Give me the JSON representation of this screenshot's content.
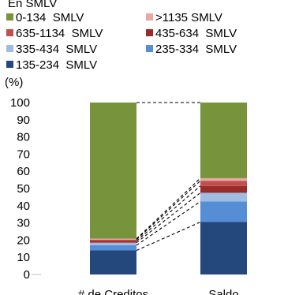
{
  "chart_data": {
    "type": "bar",
    "stacked": true,
    "title": "En SMLV",
    "ylabel": "(%)",
    "ylim": [
      0,
      100
    ],
    "yticks": [
      0,
      10,
      20,
      30,
      40,
      50,
      60,
      70,
      80,
      90,
      100
    ],
    "categories": [
      "# de Creditos",
      "Saldo"
    ],
    "series": [
      {
        "name": "135-234  SMLV",
        "color": "#24487c",
        "values": [
          14,
          30.5
        ]
      },
      {
        "name": "235-334  SMLV",
        "color": "#558ed5",
        "values": [
          3,
          12
        ]
      },
      {
        "name": "335-434  SMLV",
        "color": "#9fbce3",
        "values": [
          1.5,
          5
        ]
      },
      {
        "name": "435-634  SMLV",
        "color": "#9b2b2b",
        "values": [
          1,
          4
        ]
      },
      {
        "name": "635-1134  SMLV",
        "color": "#c0504d",
        "values": [
          0.8,
          3
        ]
      },
      {
        "name": ">1135 SMLV",
        "color": "#e6a9a6",
        "values": [
          0.5,
          1.5
        ]
      },
      {
        "name": "0-134  SMLV",
        "color": "#77933c",
        "values": [
          79.2,
          44
        ]
      }
    ],
    "legend": {
      "placement": "top",
      "order": [
        "0-134  SMLV",
        ">1135 SMLV",
        "635-1134  SMLV",
        "435-634  SMLV",
        "335-434  SMLV",
        "235-334  SMLV",
        "135-234  SMLV"
      ]
    },
    "connectors": "dashed lines joining segment boundaries of the two bars"
  }
}
